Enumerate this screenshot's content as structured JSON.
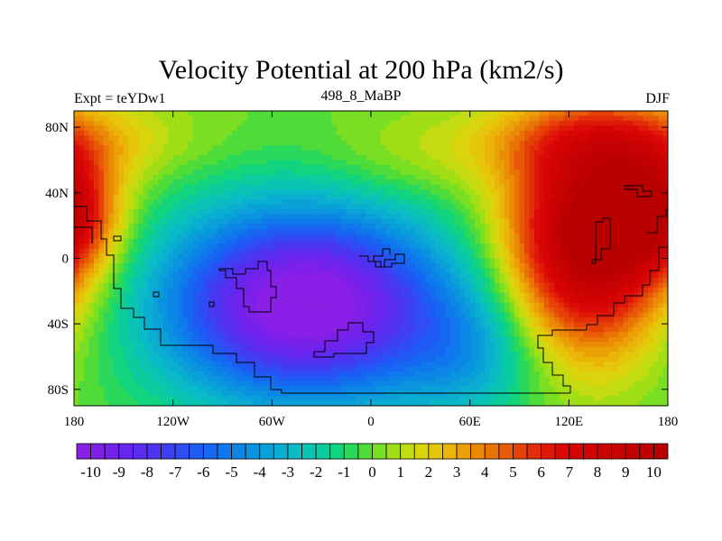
{
  "chart_data": {
    "type": "heatmap",
    "title": "Velocity Potential at 200 hPa (km2/s)",
    "left_label": "Expt = teYDw1",
    "center_label": "498_8_MaBP",
    "right_label": "DJF",
    "x_range": [
      -180,
      180
    ],
    "y_range": [
      -90,
      90
    ],
    "x_ticks": [
      {
        "value": -180,
        "label": "180"
      },
      {
        "value": -120,
        "label": "120W"
      },
      {
        "value": -60,
        "label": "60W"
      },
      {
        "value": 0,
        "label": "0"
      },
      {
        "value": 60,
        "label": "60E"
      },
      {
        "value": 120,
        "label": "120E"
      },
      {
        "value": 180,
        "label": "180"
      }
    ],
    "y_ticks": [
      {
        "value": 80,
        "label": "80N"
      },
      {
        "value": 40,
        "label": "40N"
      },
      {
        "value": 0,
        "label": "0"
      },
      {
        "value": -40,
        "label": "40S"
      },
      {
        "value": -80,
        "label": "80S"
      }
    ],
    "field_features": [
      {
        "type": "minimum",
        "lon": -40,
        "lat": -30,
        "value": -10
      },
      {
        "type": "maximum",
        "lon": 130,
        "lat": 10,
        "value": 10
      },
      {
        "type": "maximum",
        "lon": -180,
        "lat": 25,
        "value": 9
      }
    ],
    "colorbar": {
      "min": -10.5,
      "max": 10.5,
      "step": 0.5,
      "labels": [
        "-10",
        "-9",
        "-8",
        "-7",
        "-6",
        "-5",
        "-4",
        "-3",
        "-2",
        "-1",
        "0",
        "1",
        "2",
        "3",
        "4",
        "5",
        "6",
        "7",
        "8",
        "9",
        "10"
      ],
      "label_values": [
        -10,
        -9,
        -8,
        -7,
        -6,
        -5,
        -4,
        -3,
        -2,
        -1,
        0,
        1,
        2,
        3,
        4,
        5,
        6,
        7,
        8,
        9,
        10
      ],
      "colors": [
        "#8a1fe6",
        "#7f20e9",
        "#7322ec",
        "#6725ee",
        "#5a2cf0",
        "#4d34f2",
        "#3f3ff4",
        "#2f4cf5",
        "#1f5af4",
        "#1668f0",
        "#0f78ec",
        "#0b86e6",
        "#0a94df",
        "#0aa1d8",
        "#0aaed0",
        "#0abac4",
        "#0ac4b3",
        "#0bcc9c",
        "#12d37e",
        "#2ad85b",
        "#50dc38",
        "#7ade22",
        "#a2de16",
        "#c3db10",
        "#d9d40c",
        "#e6c60a",
        "#eab408",
        "#eba007",
        "#eb8a06",
        "#ea7306",
        "#e85a07",
        "#e64208",
        "#e32c08",
        "#e01808",
        "#dc0a06",
        "#d60404",
        "#d10303",
        "#cc0202",
        "#c70202",
        "#c20101",
        "#bd0000",
        "#b80000"
      ]
    }
  }
}
